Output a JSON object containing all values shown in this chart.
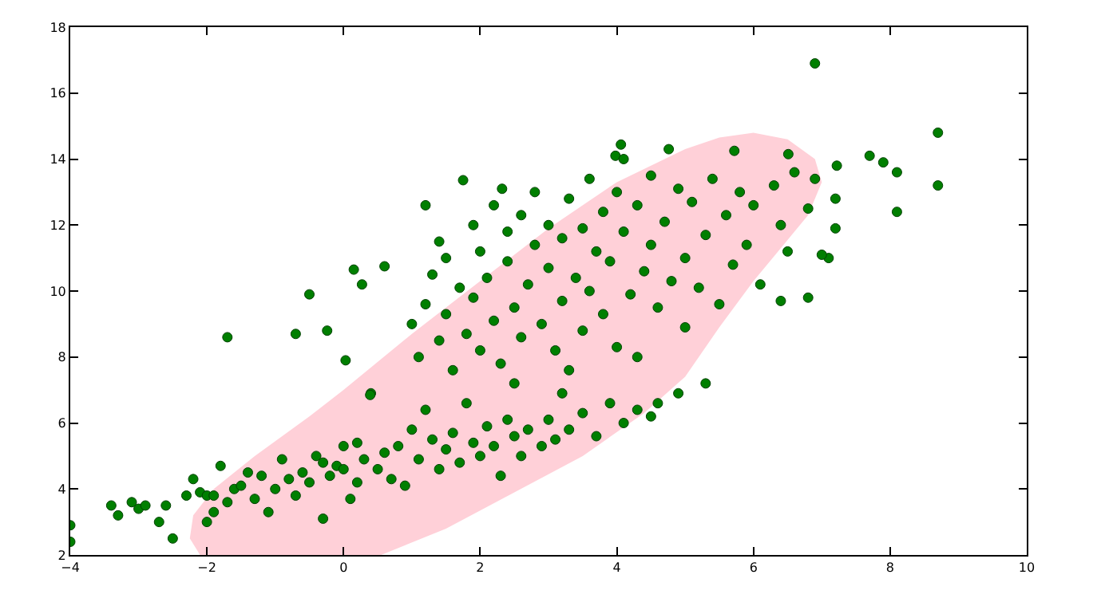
{
  "chart_data": {
    "type": "scatter",
    "xlim": [
      -4,
      10
    ],
    "ylim": [
      2,
      18
    ],
    "xticks": [
      -4,
      -2,
      0,
      2,
      4,
      6,
      8,
      10
    ],
    "yticks": [
      2,
      4,
      6,
      8,
      10,
      12,
      14,
      16,
      18
    ],
    "series": [
      {
        "type": "area",
        "color": "#ffd0d8",
        "x": [
          -2.1,
          -2.25,
          -2.2,
          -1.9,
          -1.3,
          -0.5,
          0,
          1,
          2,
          3,
          4,
          5,
          5.5,
          6,
          6.5,
          6.9,
          7.0,
          6.8,
          6.4,
          6.0,
          5.5,
          5.0,
          4.4,
          3.5,
          2.5,
          1.5,
          0.55
        ],
        "values": [
          2.0,
          2.5,
          3.2,
          4.0,
          5.0,
          6.2,
          7.0,
          8.7,
          10.3,
          11.9,
          13.3,
          14.3,
          14.65,
          14.8,
          14.6,
          14.0,
          13.3,
          12.3,
          11.3,
          10.3,
          8.9,
          7.4,
          6.3,
          5.0,
          3.9,
          2.8,
          2.0
        ]
      },
      {
        "marker": "circle",
        "color": "#007f00",
        "x": [
          -4,
          -4,
          -3.4,
          -3.3,
          -3.1,
          -3,
          -2.9,
          -2.7,
          -2.6,
          -2.5,
          -2.3,
          -2.2,
          -1.7,
          -0.7,
          -0.5,
          6.9,
          8.7,
          8.7,
          7.7,
          7.9,
          8.1,
          8.1,
          7.2,
          7.2,
          7.1,
          7.0,
          6.8,
          6.4,
          5.3,
          4.5,
          4.9,
          -2.1,
          -2.0,
          -1.9,
          -1.9,
          -2.0,
          -1.8,
          -1.7,
          -1.6,
          -1.5,
          -1.4,
          -1.3,
          -1.2,
          -1.1,
          -1.0,
          -0.9,
          -0.8,
          -0.7,
          -0.6,
          -0.5,
          -0.4,
          -0.3,
          -0.3,
          -0.2,
          -0.1,
          0,
          0,
          0.1,
          0.2,
          0.2,
          0.3,
          0.4,
          0.5,
          0.6,
          0.7,
          0.8,
          0.9,
          1.0,
          1.1,
          1.2,
          1.3,
          1.4,
          1.5,
          1.6,
          1.7,
          1.8,
          1.9,
          2.0,
          2.1,
          2.2,
          2.3,
          2.4,
          2.5,
          2.6,
          2.7,
          2.9,
          3.0,
          3.1,
          3.2,
          3.3,
          3.5,
          3.7,
          3.9,
          4.1,
          4.3,
          4.6,
          1.75,
          2.32,
          4.06,
          3.98,
          4.76,
          5.72,
          6.51,
          7.22,
          1.4,
          0.15,
          0.27,
          -0.24,
          0.6,
          0.03,
          0.39,
          1.0,
          1.1,
          1.2,
          1.3,
          1.4,
          1.5,
          1.5,
          1.6,
          1.7,
          1.8,
          1.9,
          1.9,
          2.0,
          2.0,
          2.1,
          2.2,
          2.2,
          2.3,
          2.4,
          2.4,
          2.5,
          2.6,
          2.6,
          2.7,
          2.8,
          2.8,
          2.9,
          3.0,
          3.0,
          3.1,
          3.2,
          3.2,
          3.3,
          3.4,
          3.5,
          3.5,
          3.6,
          3.6,
          3.7,
          3.8,
          3.8,
          3.9,
          4.0,
          4.0,
          4.1,
          4.2,
          4.3,
          4.4,
          4.5,
          4.5,
          4.6,
          4.7,
          4.8,
          4.9,
          5.0,
          5.0,
          5.1,
          5.2,
          5.3,
          5.4,
          5.5,
          5.6,
          5.7,
          5.8,
          5.9,
          6.0,
          6.1,
          6.3,
          6.4,
          6.5,
          6.6,
          6.8,
          6.9,
          2.5,
          3.3,
          4.3,
          1.2,
          4.1
        ],
        "values": [
          2.4,
          2.9,
          3.5,
          3.2,
          3.6,
          3.4,
          3.5,
          3.0,
          3.5,
          2.5,
          3.8,
          4.3,
          8.6,
          8.7,
          9.9,
          16.9,
          14.8,
          13.2,
          14.1,
          13.9,
          13.6,
          12.4,
          12.8,
          11.9,
          11.0,
          11.1,
          9.8,
          9.7,
          7.2,
          6.2,
          6.9,
          3.9,
          3.8,
          3.8,
          3.3,
          3.0,
          4.7,
          3.6,
          4.0,
          4.1,
          4.5,
          3.7,
          4.4,
          3.3,
          4.0,
          4.9,
          4.3,
          3.8,
          4.5,
          4.2,
          5.0,
          4.8,
          3.1,
          4.4,
          4.7,
          5.3,
          4.6,
          3.7,
          5.4,
          4.2,
          4.9,
          6.9,
          4.6,
          5.1,
          4.3,
          5.3,
          4.1,
          5.8,
          4.9,
          6.4,
          5.5,
          4.6,
          5.2,
          5.7,
          4.8,
          6.6,
          5.4,
          5.0,
          5.9,
          5.3,
          4.4,
          6.1,
          5.6,
          5.0,
          5.8,
          5.3,
          6.1,
          5.5,
          6.9,
          5.8,
          6.3,
          5.6,
          6.6,
          6.0,
          6.4,
          6.6,
          13.36,
          13.1,
          14.44,
          14.1,
          14.3,
          14.25,
          14.15,
          13.8,
          11.5,
          10.65,
          10.2,
          8.8,
          10.75,
          7.9,
          6.85,
          9.0,
          8.0,
          9.6,
          10.5,
          8.5,
          11.0,
          9.3,
          7.6,
          10.1,
          8.7,
          12.0,
          9.8,
          11.2,
          8.2,
          10.4,
          9.1,
          12.6,
          7.8,
          10.9,
          11.8,
          9.5,
          12.3,
          8.6,
          10.2,
          11.4,
          13.0,
          9.0,
          10.7,
          12.0,
          8.2,
          11.6,
          9.7,
          12.8,
          10.4,
          11.9,
          8.8,
          13.4,
          10.0,
          11.2,
          12.4,
          9.3,
          10.9,
          13.0,
          8.3,
          11.8,
          9.9,
          12.6,
          10.6,
          13.5,
          11.4,
          9.5,
          12.1,
          10.3,
          13.1,
          11.0,
          8.9,
          12.7,
          10.1,
          11.7,
          13.4,
          9.6,
          12.3,
          10.8,
          13.0,
          11.4,
          12.6,
          10.2,
          13.2,
          12.0,
          11.2,
          13.6,
          12.5,
          13.4,
          7.2,
          7.6,
          8.0,
          12.6,
          14.0
        ]
      }
    ]
  }
}
